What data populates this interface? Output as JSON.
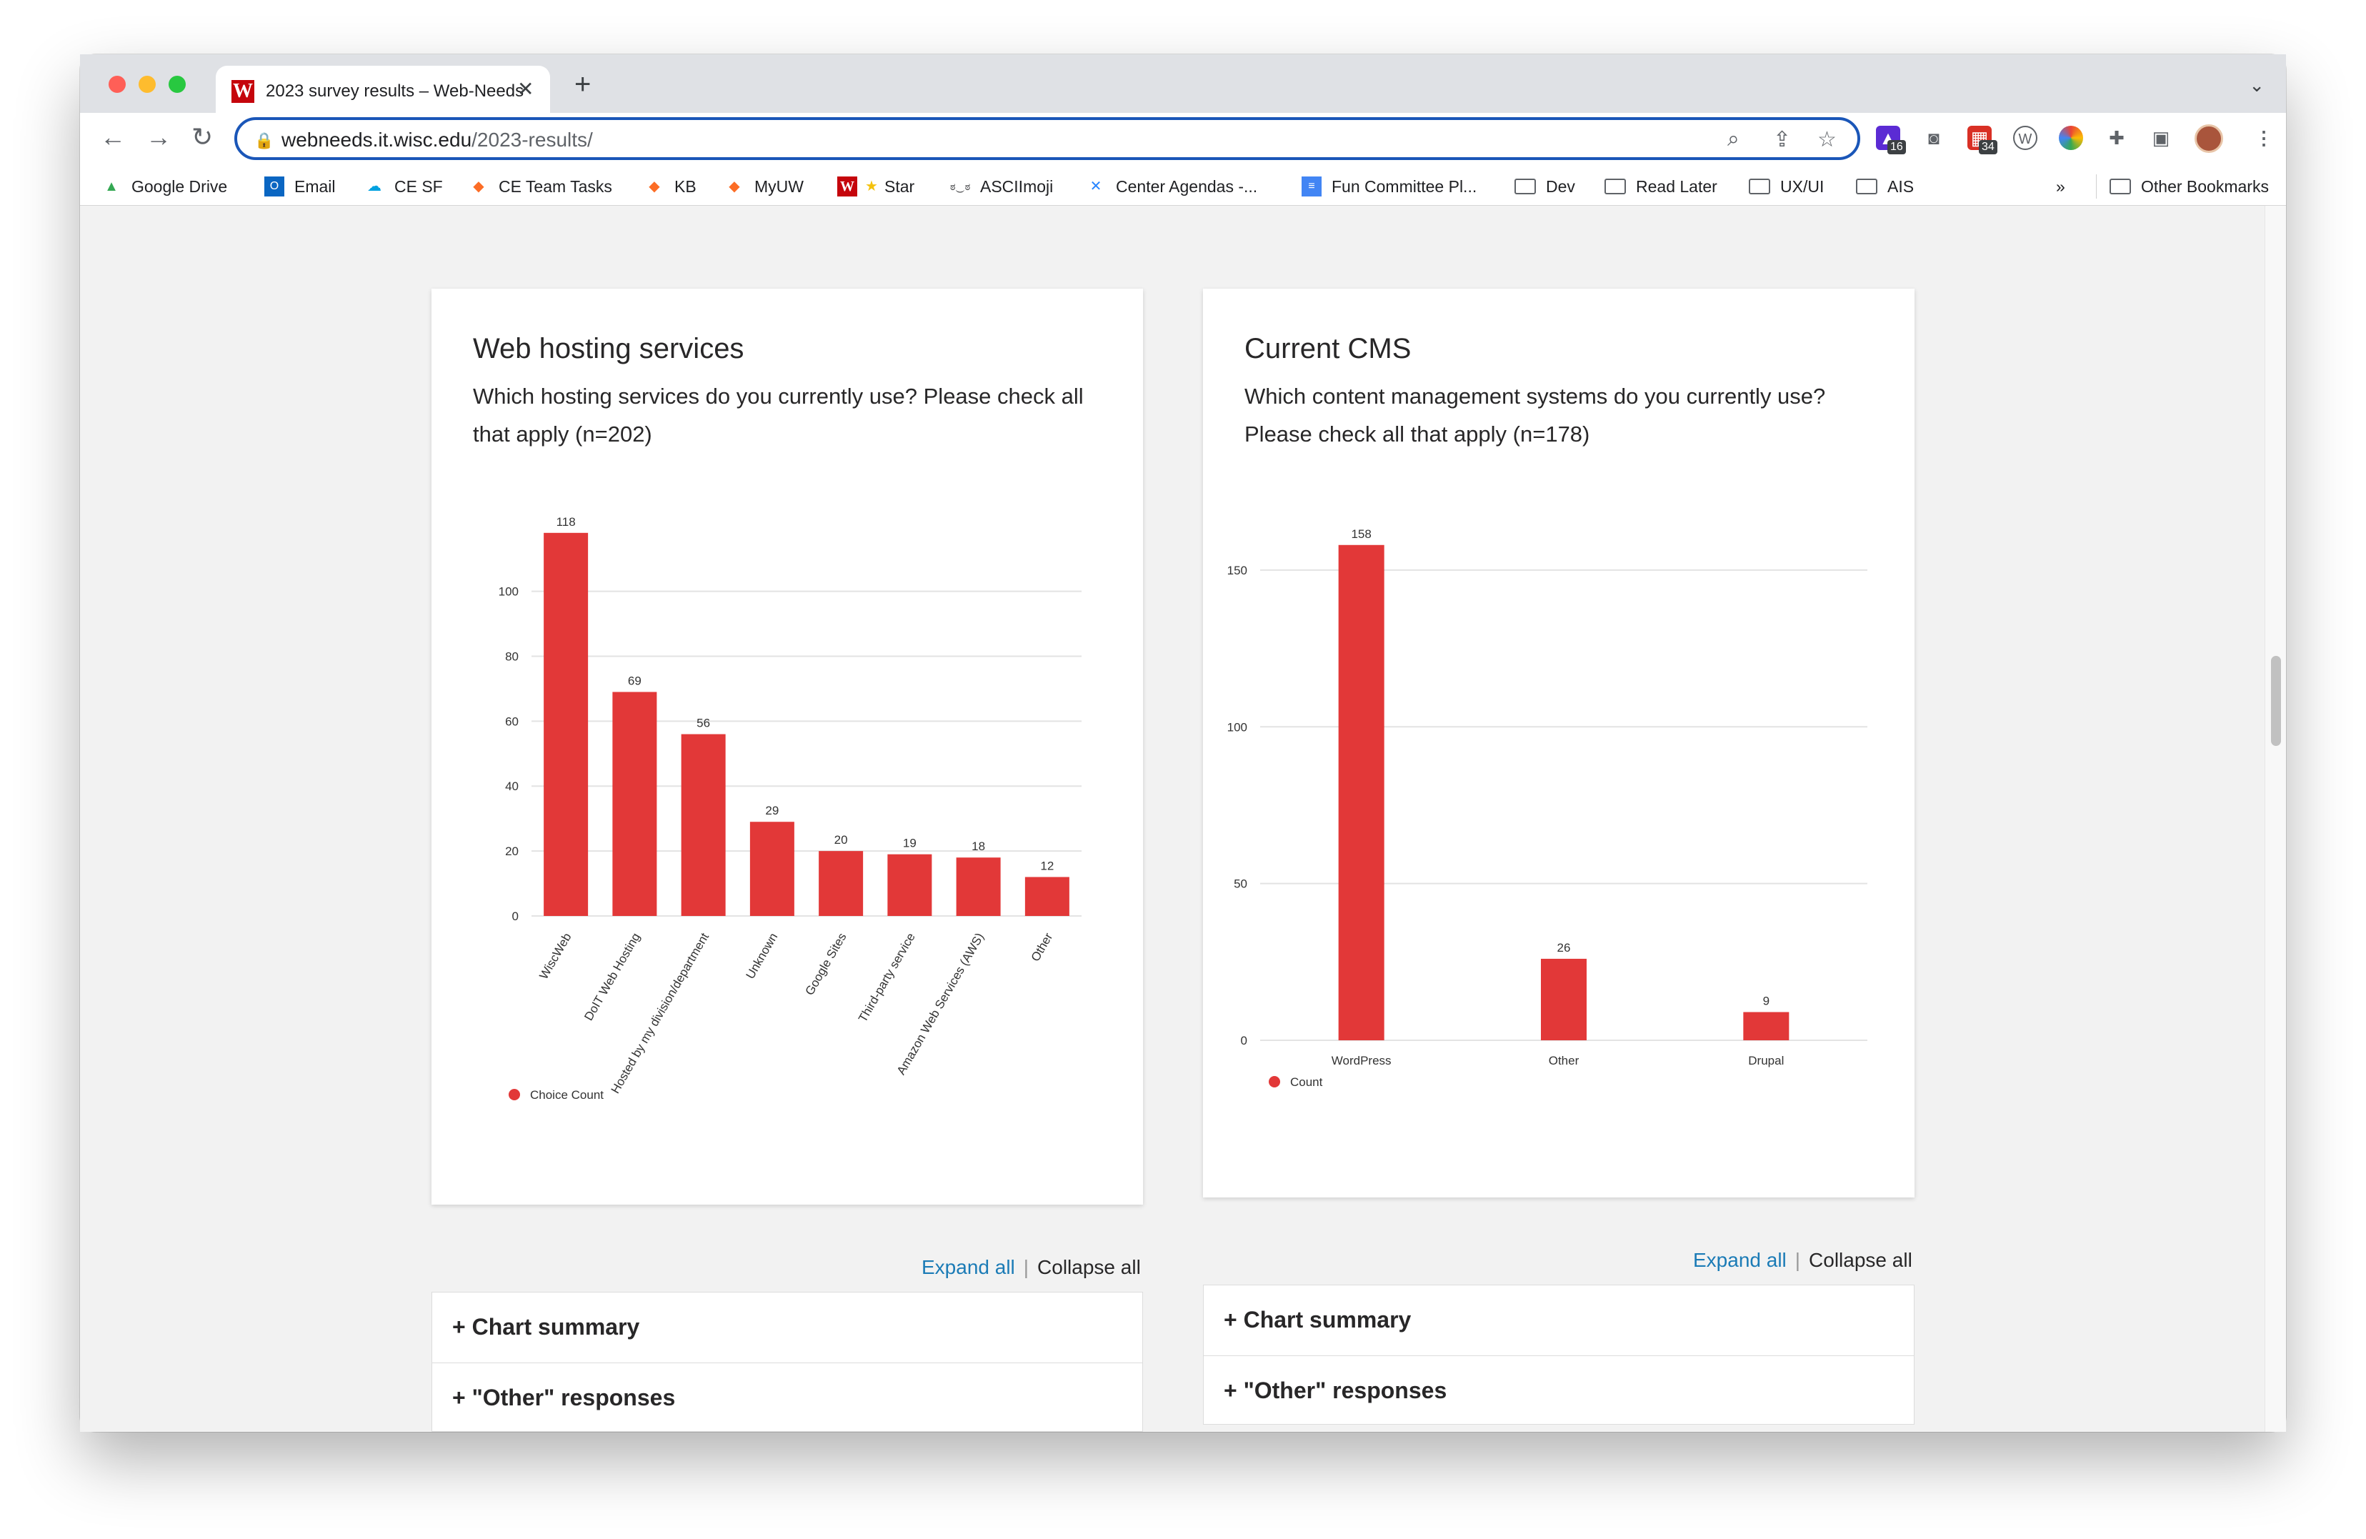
{
  "browser": {
    "tab_title": "2023 survey results – Web-Needs",
    "url_host": "webneeds.it.wisc.edu",
    "url_path": "/2023-results/",
    "ext_badge_1": "16",
    "ext_badge_2": "34",
    "bookmarks": [
      "Google Drive",
      "Email",
      "CE SF",
      "CE Team Tasks",
      "KB",
      "MyUW",
      "Star",
      "ASCIImoji",
      "Center Agendas -...",
      "Fun Committee Pl...",
      "Dev",
      "Read Later",
      "UX/UI",
      "AIS"
    ],
    "overflow": "»",
    "other_bookmarks": "Other Bookmarks"
  },
  "colors": {
    "accent": "#1a56b8",
    "bar": "#e23838",
    "link": "#1b7bb6"
  },
  "cards": [
    {
      "title": "Web hosting services",
      "question": "Which hosting services do you currently use? Please check all that apply (n=202)"
    },
    {
      "title": "Current CMS",
      "question": "Which content management systems do you currently use? Please check all that apply (n=178)"
    }
  ],
  "chart_data": [
    {
      "type": "bar",
      "categories": [
        "WiscWeb",
        "DoIT Web Hosting",
        "Hosted by my division/department",
        "Unknown",
        "Google Sites",
        "Third-party service",
        "Amazon Web Services (AWS)",
        "Other"
      ],
      "series": [
        {
          "name": "Choice Count",
          "values": [
            118,
            69,
            56,
            29,
            20,
            19,
            18,
            12
          ]
        }
      ],
      "yticks": [
        0,
        20,
        40,
        60,
        80,
        100
      ],
      "ylim": [
        0,
        125
      ],
      "legend": "bottom-left",
      "grid": true
    },
    {
      "type": "bar",
      "categories": [
        "WordPress",
        "Other",
        "Drupal"
      ],
      "series": [
        {
          "name": "Count",
          "values": [
            158,
            26,
            9
          ]
        }
      ],
      "yticks": [
        0,
        50,
        100,
        150
      ],
      "ylim": [
        0,
        160
      ],
      "legend": "bottom-left",
      "grid": true
    }
  ],
  "accordions": [
    {
      "expand_all": "Expand all",
      "collapse_all": "Collapse all",
      "items": [
        "+ Chart summary",
        "+ \"Other\" responses"
      ]
    },
    {
      "expand_all": "Expand all",
      "collapse_all": "Collapse all",
      "items": [
        "+ Chart summary",
        "+ \"Other\" responses"
      ]
    }
  ]
}
